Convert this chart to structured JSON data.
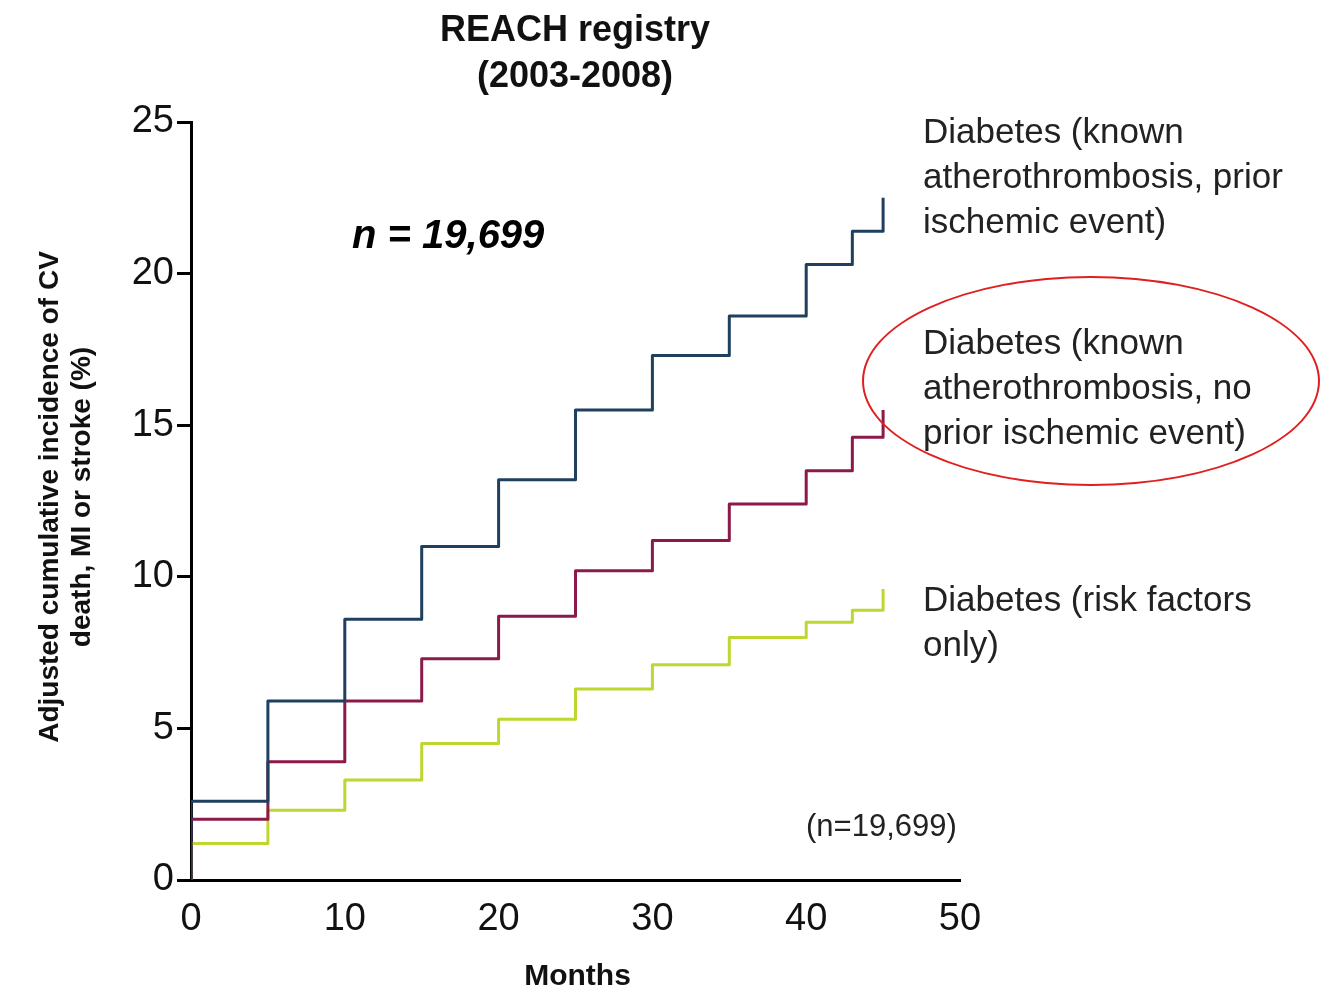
{
  "chart_data": {
    "type": "step",
    "title": "REACH registry (2003-2008)",
    "xlabel": "Months",
    "ylabel": "Adjusted cumulative incidence of CV death, MI or stroke (%)",
    "x": [
      0,
      5,
      10,
      15,
      20,
      25,
      30,
      35,
      40,
      43,
      45,
      45
    ],
    "xlim": [
      0,
      50
    ],
    "xticks": [
      0,
      10,
      20,
      30,
      40,
      50
    ],
    "ylim": [
      0,
      25
    ],
    "yticks": [
      0,
      5,
      10,
      15,
      20,
      25
    ],
    "marker": "none",
    "series": [
      {
        "name": "Diabetes (known atherothrombosis, prior ischemic event)",
        "color": "#1f3f5f",
        "values": [
          0,
          2.6,
          5.9,
          8.6,
          11.0,
          13.2,
          15.5,
          17.3,
          18.6,
          20.3,
          21.4,
          22.5
        ]
      },
      {
        "name": "Diabetes (known atherothrombosis, no prior ischemic event)",
        "color": "#8b1a4a",
        "values": [
          0,
          2.0,
          3.9,
          5.9,
          7.3,
          8.7,
          10.2,
          11.2,
          12.4,
          13.5,
          14.6,
          15.5
        ]
      },
      {
        "name": "Diabetes (risk factors only)",
        "color": "#c0d630",
        "values": [
          0,
          1.2,
          2.3,
          3.3,
          4.5,
          5.3,
          6.3,
          7.1,
          8.0,
          8.5,
          8.9,
          9.6
        ]
      }
    ],
    "annotations": [
      "n = 19,699",
      "(n=19,699)"
    ]
  }
}
